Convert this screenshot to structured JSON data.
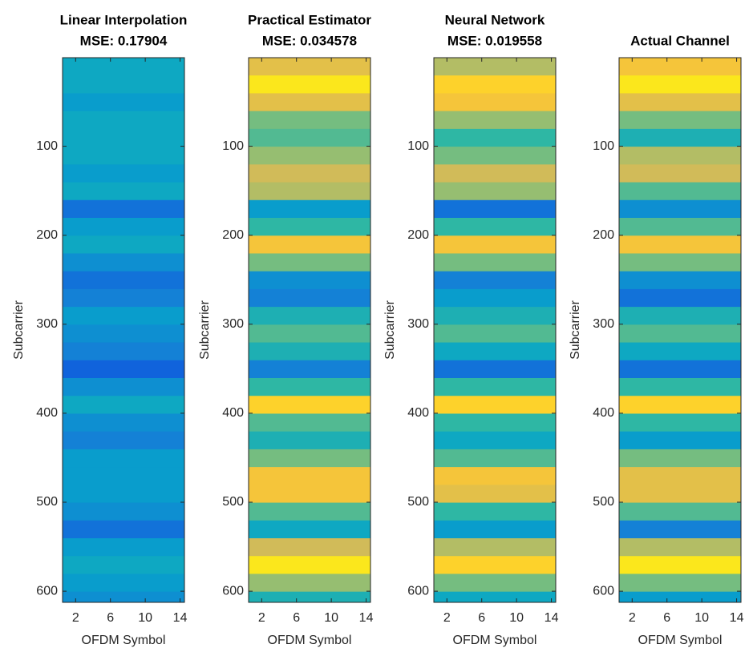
{
  "chart_data": [
    {
      "type": "heatmap",
      "title_lines": [
        "Linear Interpolation",
        "MSE: 0.17904"
      ],
      "xlabel": "OFDM Symbol",
      "ylabel": "Subcarrier",
      "xlim": [
        0.5,
        14.5
      ],
      "ylim": [
        0.5,
        612.5
      ],
      "y_reversed": true,
      "xticks": [
        2,
        6,
        10,
        14
      ],
      "yticks": [
        100,
        200,
        300,
        400,
        500,
        600
      ],
      "colormap": "parula",
      "band_edges": [
        0.5,
        20.5,
        40.5,
        60.5,
        80.5,
        100.5,
        120.5,
        140.5,
        160.5,
        180.5,
        200.5,
        220.5,
        240.5,
        260.5,
        280.5,
        300.5,
        320.5,
        340.5,
        360.5,
        380.5,
        400.5,
        420.5,
        440.5,
        460.5,
        480.5,
        500.5,
        520.5,
        540.5,
        560.5,
        580.5,
        600.5,
        612.5
      ],
      "values": [
        0.4,
        0.4,
        0.35,
        0.4,
        0.4,
        0.4,
        0.35,
        0.4,
        0.2,
        0.35,
        0.4,
        0.3,
        0.2,
        0.25,
        0.35,
        0.3,
        0.25,
        0.15,
        0.3,
        0.4,
        0.3,
        0.25,
        0.35,
        0.35,
        0.35,
        0.3,
        0.2,
        0.35,
        0.4,
        0.35,
        0.3
      ]
    },
    {
      "type": "heatmap",
      "title_lines": [
        "Practical Estimator",
        "MSE: 0.034578"
      ],
      "xlabel": "OFDM Symbol",
      "ylabel": "Subcarrier",
      "xlim": [
        0.5,
        14.5
      ],
      "ylim": [
        0.5,
        612.5
      ],
      "y_reversed": true,
      "xticks": [
        2,
        6,
        10,
        14
      ],
      "yticks": [
        100,
        200,
        300,
        400,
        500,
        600
      ],
      "colormap": "parula",
      "band_edges": [
        0.5,
        20.5,
        40.5,
        60.5,
        80.5,
        100.5,
        120.5,
        140.5,
        160.5,
        180.5,
        200.5,
        220.5,
        240.5,
        260.5,
        280.5,
        300.5,
        320.5,
        340.5,
        360.5,
        380.5,
        400.5,
        420.5,
        440.5,
        460.5,
        480.5,
        500.5,
        520.5,
        540.5,
        560.5,
        580.5,
        600.5,
        612.5
      ],
      "values": [
        0.8,
        0.95,
        0.8,
        0.6,
        0.55,
        0.65,
        0.75,
        0.7,
        0.35,
        0.5,
        0.85,
        0.6,
        0.3,
        0.25,
        0.45,
        0.55,
        0.45,
        0.25,
        0.5,
        0.9,
        0.55,
        0.45,
        0.6,
        0.85,
        0.85,
        0.55,
        0.4,
        0.75,
        0.95,
        0.65,
        0.45
      ]
    },
    {
      "type": "heatmap",
      "title_lines": [
        "Neural Network",
        "MSE: 0.019558"
      ],
      "xlabel": "OFDM Symbol",
      "ylabel": "Subcarrier",
      "xlim": [
        0.5,
        14.5
      ],
      "ylim": [
        0.5,
        612.5
      ],
      "y_reversed": true,
      "xticks": [
        2,
        6,
        10,
        14
      ],
      "yticks": [
        100,
        200,
        300,
        400,
        500,
        600
      ],
      "colormap": "parula",
      "band_edges": [
        0.5,
        20.5,
        40.5,
        60.5,
        80.5,
        100.5,
        120.5,
        140.5,
        160.5,
        180.5,
        200.5,
        220.5,
        240.5,
        260.5,
        280.5,
        300.5,
        320.5,
        340.5,
        360.5,
        380.5,
        400.5,
        420.5,
        440.5,
        460.5,
        480.5,
        500.5,
        520.5,
        540.5,
        560.5,
        580.5,
        600.5,
        612.5
      ],
      "values": [
        0.7,
        0.9,
        0.85,
        0.65,
        0.5,
        0.6,
        0.75,
        0.65,
        0.2,
        0.5,
        0.85,
        0.6,
        0.25,
        0.35,
        0.45,
        0.55,
        0.4,
        0.2,
        0.5,
        0.9,
        0.5,
        0.4,
        0.55,
        0.85,
        0.8,
        0.5,
        0.35,
        0.7,
        0.9,
        0.6,
        0.4
      ]
    },
    {
      "type": "heatmap",
      "title_lines": [
        "Actual Channel"
      ],
      "xlabel": "OFDM Symbol",
      "ylabel": "Subcarrier",
      "xlim": [
        0.5,
        14.5
      ],
      "ylim": [
        0.5,
        612.5
      ],
      "y_reversed": true,
      "xticks": [
        2,
        6,
        10,
        14
      ],
      "yticks": [
        100,
        200,
        300,
        400,
        500,
        600
      ],
      "colormap": "parula",
      "band_edges": [
        0.5,
        20.5,
        40.5,
        60.5,
        80.5,
        100.5,
        120.5,
        140.5,
        160.5,
        180.5,
        200.5,
        220.5,
        240.5,
        260.5,
        280.5,
        300.5,
        320.5,
        340.5,
        360.5,
        380.5,
        400.5,
        420.5,
        440.5,
        460.5,
        480.5,
        500.5,
        520.5,
        540.5,
        560.5,
        580.5,
        600.5,
        612.5
      ],
      "values": [
        0.85,
        0.95,
        0.8,
        0.6,
        0.45,
        0.7,
        0.75,
        0.55,
        0.3,
        0.55,
        0.85,
        0.6,
        0.3,
        0.2,
        0.45,
        0.55,
        0.4,
        0.2,
        0.5,
        0.9,
        0.5,
        0.35,
        0.6,
        0.8,
        0.8,
        0.55,
        0.25,
        0.7,
        0.95,
        0.6,
        0.35
      ]
    }
  ]
}
